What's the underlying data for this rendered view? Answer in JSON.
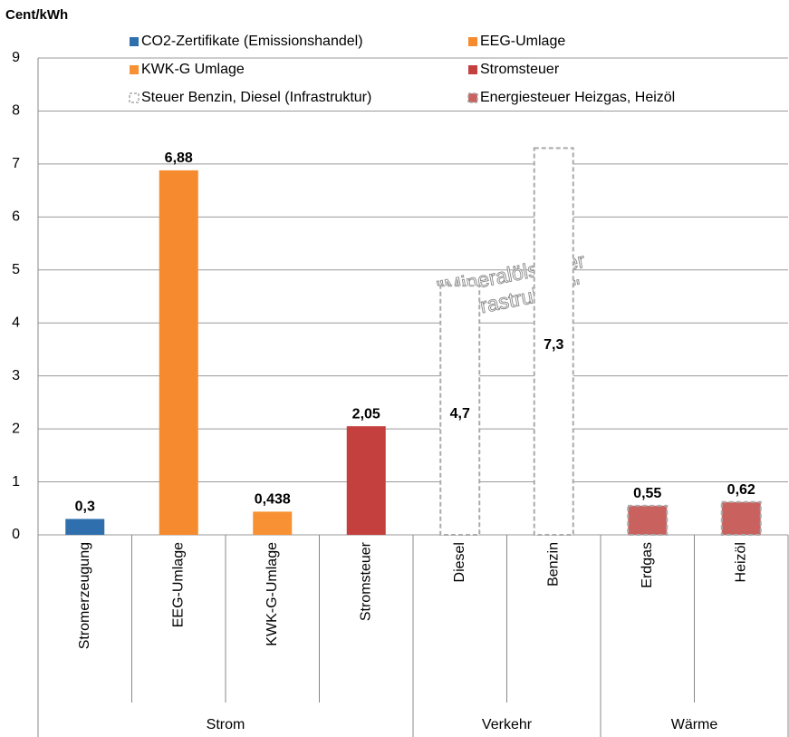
{
  "chart_data": {
    "type": "bar",
    "y_label": "Cent/kWh",
    "groups": [
      {
        "name": "Strom",
        "categories": [
          "Stromerzeugung",
          "EEG-Umlage",
          "KWK-G-Umlage",
          "Stromsteuer"
        ]
      },
      {
        "name": "Verkehr",
        "categories": [
          "Diesel",
          "Benzin"
        ]
      },
      {
        "name": "Wärme",
        "categories": [
          "Erdgas",
          "Heizöl"
        ]
      }
    ],
    "series": [
      {
        "name": "CO2-Zertifikate (Emissionshandel)",
        "color": "#2f6fae",
        "values": [
          0.3,
          null,
          null,
          null,
          null,
          null,
          null,
          null
        ],
        "value_labels": [
          "0,3",
          null,
          null,
          null,
          null,
          null,
          null,
          null
        ]
      },
      {
        "name": "EEG-Umlage",
        "color": "#f58a2e",
        "values": [
          null,
          6.88,
          null,
          null,
          null,
          null,
          null,
          null
        ],
        "value_labels": [
          null,
          "6,88",
          null,
          null,
          null,
          null,
          null,
          null
        ]
      },
      {
        "name": "KWK-G Umlage",
        "color": "#f79133",
        "values": [
          null,
          null,
          0.438,
          null,
          null,
          null,
          null,
          null
        ],
        "value_labels": [
          null,
          null,
          "0,438",
          null,
          null,
          null,
          null,
          null
        ]
      },
      {
        "name": "Stromsteuer",
        "color": "#c4403f",
        "values": [
          null,
          null,
          null,
          2.05,
          null,
          null,
          null,
          null
        ],
        "value_labels": [
          null,
          null,
          null,
          "2,05",
          null,
          null,
          null,
          null
        ]
      },
      {
        "name": "Steuer Benzin, Diesel (Infrastruktur)",
        "color": "#ffffff",
        "dashed": true,
        "label_inside": true,
        "values": [
          null,
          null,
          null,
          null,
          4.7,
          7.3,
          null,
          null
        ],
        "value_labels": [
          null,
          null,
          null,
          null,
          "4,7",
          "7,3",
          null,
          null
        ]
      },
      {
        "name": "Energiesteuer Heizgas, Heizöl",
        "color": "#c9625e",
        "dashed": true,
        "values": [
          null,
          null,
          null,
          null,
          null,
          null,
          0.55,
          0.62
        ],
        "value_labels": [
          null,
          null,
          null,
          null,
          null,
          null,
          "0,55",
          "0,62"
        ]
      }
    ],
    "annotation": [
      "\"Mineralölsteuer",
      "(Infrastruktur)\""
    ],
    "ylim": [
      0,
      9
    ],
    "yticks": [
      0,
      1,
      2,
      3,
      4,
      5,
      6,
      7,
      8,
      9
    ],
    "grid": true
  }
}
